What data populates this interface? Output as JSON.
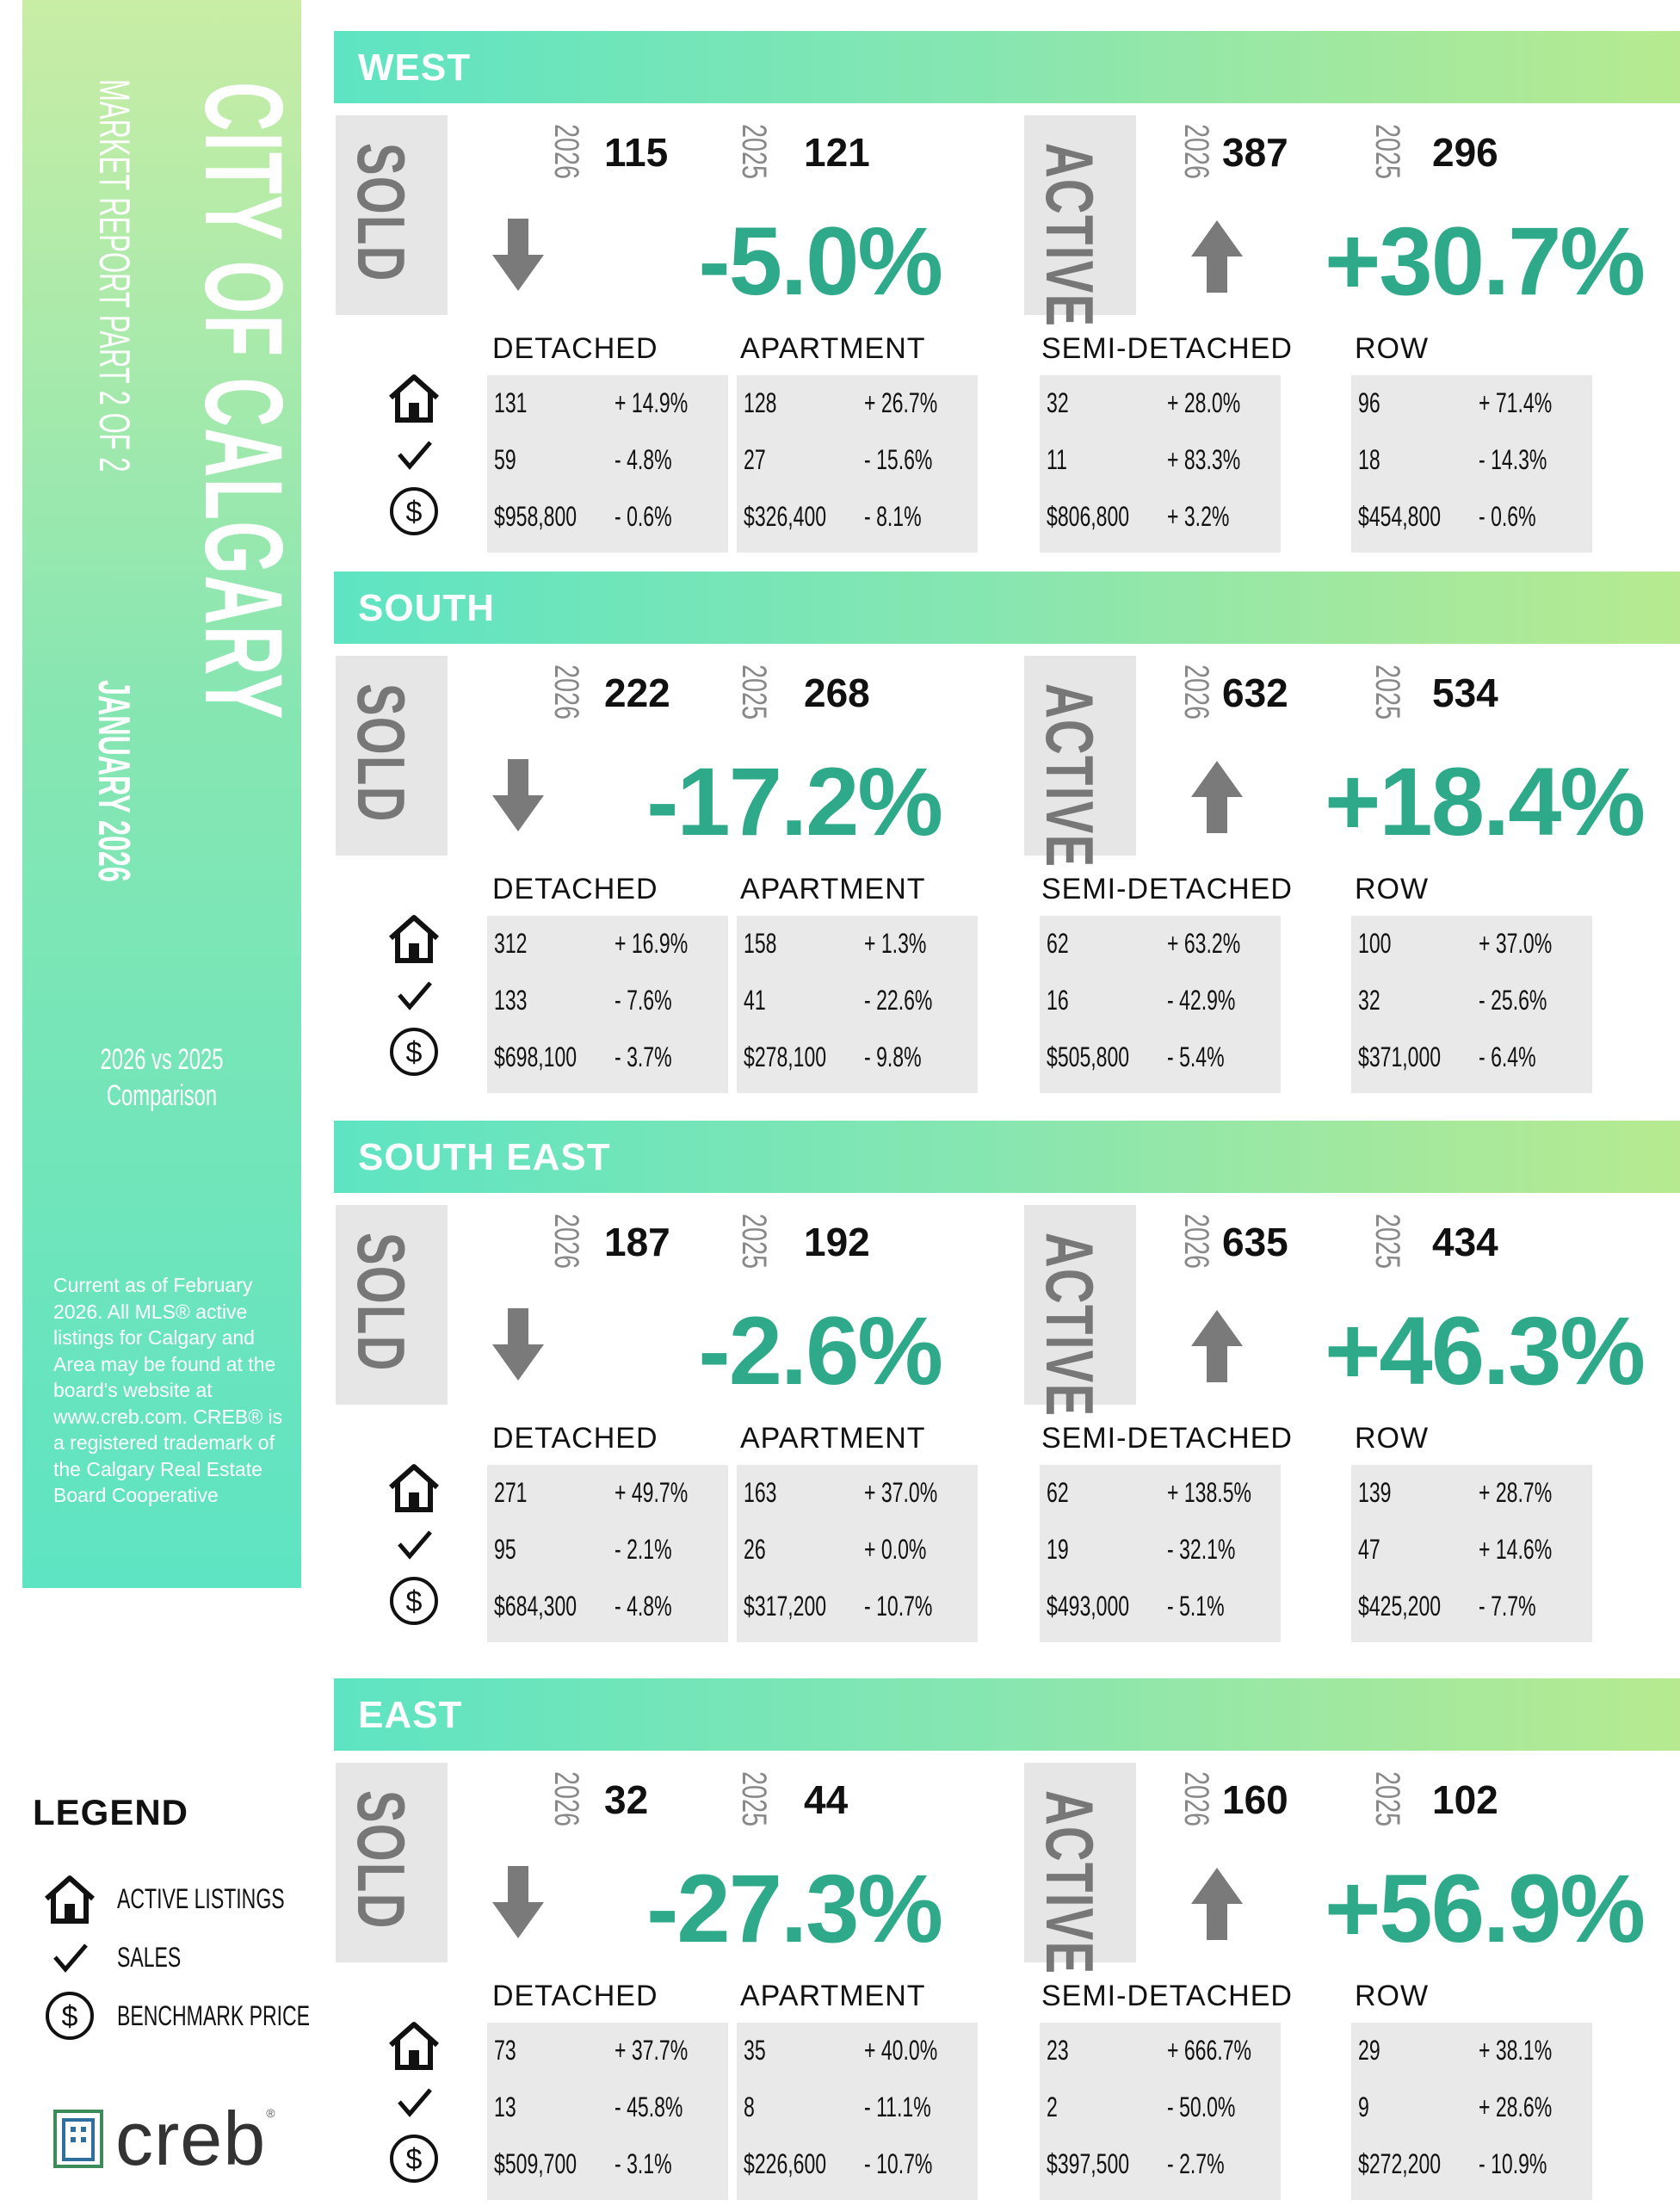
{
  "sidebar": {
    "title": "CITY OF CALGARY",
    "subtitle": "MARKET REPORT PART 2 OF 2",
    "date": "JANUARY 2026",
    "comparison_line1": "2026 vs 2025",
    "comparison_line2": "Comparison",
    "disclaimer": "Current as of February 2026. All MLS® active listings for Calgary and Area may be found at the board's website at www.creb.com. CREB® is a registered trademark of the Calgary Real Estate Board Cooperative"
  },
  "legend": {
    "title": "LEGEND",
    "items": [
      {
        "icon": "house-icon",
        "label": "ACTIVE LISTINGS"
      },
      {
        "icon": "checkmark-icon",
        "label": "SALES"
      },
      {
        "icon": "dollar-icon",
        "label": "BENCHMARK PRICE"
      }
    ]
  },
  "logo": {
    "word": "creb",
    "mark": "®"
  },
  "labels": {
    "sold": "SOLD",
    "active": "ACTIVE",
    "year_current": "2026",
    "year_previous": "2025",
    "categories": [
      "DETACHED",
      "APARTMENT",
      "SEMI-DETACHED",
      "ROW"
    ]
  },
  "colors": {
    "accent": "#2eaa8a",
    "banner_start": "#5ee4c2",
    "banner_end": "#b7ea90",
    "box_gray": "#e6e6e6"
  },
  "regions": [
    {
      "name": "WEST",
      "sold": {
        "current": "115",
        "previous": "121",
        "change": "-5.0%",
        "direction": "down"
      },
      "active": {
        "current": "387",
        "previous": "296",
        "change": "+30.7%",
        "direction": "up"
      },
      "categories": [
        {
          "listings": "131",
          "listings_change": "+ 14.9%",
          "sales": "59",
          "sales_change": "- 4.8%",
          "price": "$958,800",
          "price_change": "- 0.6%"
        },
        {
          "listings": "128",
          "listings_change": "+ 26.7%",
          "sales": "27",
          "sales_change": "- 15.6%",
          "price": "$326,400",
          "price_change": "- 8.1%"
        },
        {
          "listings": "32",
          "listings_change": "+ 28.0%",
          "sales": "11",
          "sales_change": "+ 83.3%",
          "price": "$806,800",
          "price_change": "+ 3.2%"
        },
        {
          "listings": "96",
          "listings_change": "+ 71.4%",
          "sales": "18",
          "sales_change": "- 14.3%",
          "price": "$454,800",
          "price_change": "- 0.6%"
        }
      ]
    },
    {
      "name": "SOUTH",
      "sold": {
        "current": "222",
        "previous": "268",
        "change": "-17.2%",
        "direction": "down"
      },
      "active": {
        "current": "632",
        "previous": "534",
        "change": "+18.4%",
        "direction": "up"
      },
      "categories": [
        {
          "listings": "312",
          "listings_change": "+ 16.9%",
          "sales": "133",
          "sales_change": "- 7.6%",
          "price": "$698,100",
          "price_change": "- 3.7%"
        },
        {
          "listings": "158",
          "listings_change": "+ 1.3%",
          "sales": "41",
          "sales_change": "- 22.6%",
          "price": "$278,100",
          "price_change": "- 9.8%"
        },
        {
          "listings": "62",
          "listings_change": "+ 63.2%",
          "sales": "16",
          "sales_change": "- 42.9%",
          "price": "$505,800",
          "price_change": "- 5.4%"
        },
        {
          "listings": "100",
          "listings_change": "+ 37.0%",
          "sales": "32",
          "sales_change": "- 25.6%",
          "price": "$371,000",
          "price_change": "- 6.4%"
        }
      ]
    },
    {
      "name": "SOUTH EAST",
      "sold": {
        "current": "187",
        "previous": "192",
        "change": "-2.6%",
        "direction": "down"
      },
      "active": {
        "current": "635",
        "previous": "434",
        "change": "+46.3%",
        "direction": "up"
      },
      "categories": [
        {
          "listings": "271",
          "listings_change": "+ 49.7%",
          "sales": "95",
          "sales_change": "- 2.1%",
          "price": "$684,300",
          "price_change": "- 4.8%"
        },
        {
          "listings": "163",
          "listings_change": "+ 37.0%",
          "sales": "26",
          "sales_change": "+ 0.0%",
          "price": "$317,200",
          "price_change": "- 10.7%"
        },
        {
          "listings": "62",
          "listings_change": "+ 138.5%",
          "sales": "19",
          "sales_change": "- 32.1%",
          "price": "$493,000",
          "price_change": "- 5.1%"
        },
        {
          "listings": "139",
          "listings_change": "+ 28.7%",
          "sales": "47",
          "sales_change": "+ 14.6%",
          "price": "$425,200",
          "price_change": "- 7.7%"
        }
      ]
    },
    {
      "name": "EAST",
      "sold": {
        "current": "32",
        "previous": "44",
        "change": "-27.3%",
        "direction": "down"
      },
      "active": {
        "current": "160",
        "previous": "102",
        "change": "+56.9%",
        "direction": "up"
      },
      "categories": [
        {
          "listings": "73",
          "listings_change": "+ 37.7%",
          "sales": "13",
          "sales_change": "- 45.8%",
          "price": "$509,700",
          "price_change": "- 3.1%"
        },
        {
          "listings": "35",
          "listings_change": "+ 40.0%",
          "sales": "8",
          "sales_change": "- 11.1%",
          "price": "$226,600",
          "price_change": "- 10.7%"
        },
        {
          "listings": "23",
          "listings_change": "+ 666.7%",
          "sales": "2",
          "sales_change": "- 50.0%",
          "price": "$397,500",
          "price_change": "- 2.7%"
        },
        {
          "listings": "29",
          "listings_change": "+ 38.1%",
          "sales": "9",
          "sales_change": "+ 28.6%",
          "price": "$272,200",
          "price_change": "- 10.9%"
        }
      ]
    }
  ]
}
